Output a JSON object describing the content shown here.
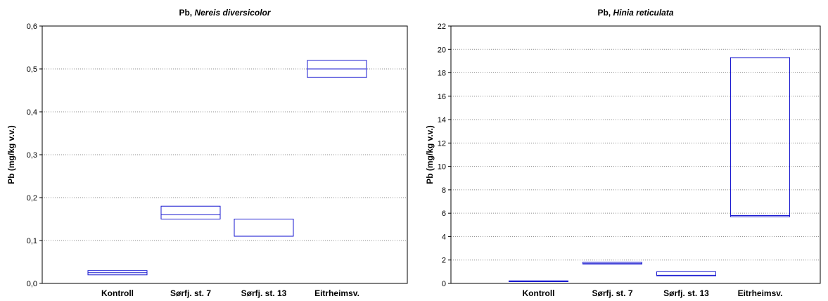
{
  "chart_data": [
    {
      "type": "box",
      "title_prefix": "Pb, ",
      "title_italic": "Nereis diversicolor",
      "xlabel": "",
      "ylabel": "Pb (mg/kg v.v.)",
      "ylim": [
        0,
        0.6
      ],
      "ytick_values": [
        0,
        0.1,
        0.2,
        0.3,
        0.4,
        0.5,
        0.6
      ],
      "ytick_labels": [
        "0,0",
        "0,1",
        "0,2",
        "0,3",
        "0,4",
        "0,5",
        "0,6"
      ],
      "grid": "horizontal dotted",
      "categories": [
        "Kontroll",
        "Sørfj. st. 7",
        "Sørfj. st. 13",
        "Eitrheimsv."
      ],
      "boxes": [
        {
          "low": 0.02,
          "mid": 0.025,
          "high": 0.03
        },
        {
          "low": 0.15,
          "mid": 0.16,
          "high": 0.18
        },
        {
          "low": 0.11,
          "mid": 0.11,
          "high": 0.15
        },
        {
          "low": 0.48,
          "mid": 0.5,
          "high": 0.52
        }
      ]
    },
    {
      "type": "box",
      "title_prefix": "Pb, ",
      "title_italic": "Hinia reticulata",
      "xlabel": "",
      "ylabel": "Pb (mg/kg v.v.)",
      "ylim": [
        0,
        22
      ],
      "ytick_values": [
        0,
        2,
        4,
        6,
        8,
        10,
        12,
        14,
        16,
        18,
        20,
        22
      ],
      "ytick_labels": [
        "0",
        "2",
        "4",
        "6",
        "8",
        "10",
        "12",
        "14",
        "16",
        "18",
        "20",
        "22"
      ],
      "grid": "horizontal dotted",
      "categories": [
        "Kontroll",
        "Sørfj. st. 7",
        "Sørfj. st. 13",
        "Eitrheimsv."
      ],
      "boxes": [
        {
          "low": 0.15,
          "mid": 0.18,
          "high": 0.22
        },
        {
          "low": 1.65,
          "mid": 1.7,
          "high": 1.8
        },
        {
          "low": 0.65,
          "mid": 0.7,
          "high": 1.0
        },
        {
          "low": 5.7,
          "mid": 5.8,
          "high": 19.3
        }
      ]
    }
  ],
  "colors": {
    "box_stroke": "#1a1ad0",
    "grid": "#8c8c8c",
    "axis": "#000000"
  }
}
